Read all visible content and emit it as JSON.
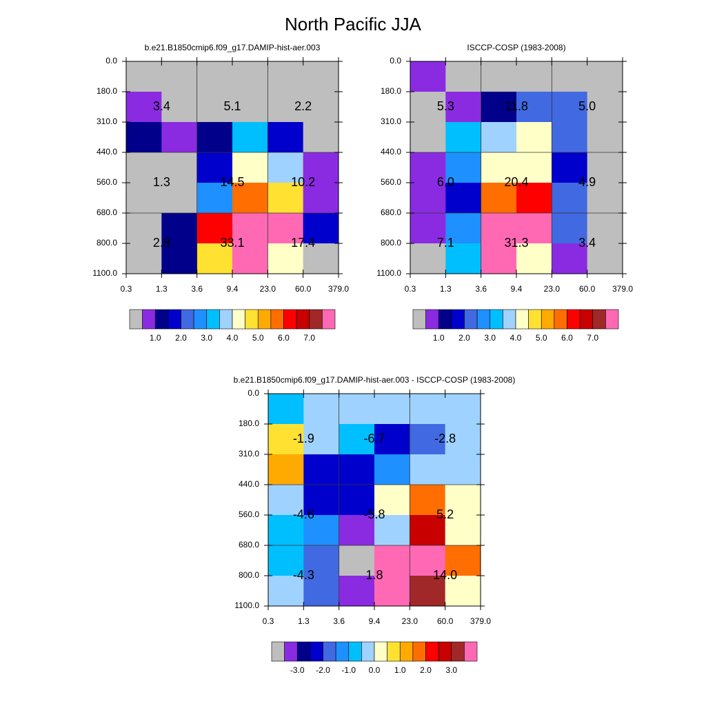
{
  "title": "North Pacific JJA",
  "chart_data": [
    {
      "type": "heatmap",
      "title": "b.e21.B1850cmip6.f09_g17.DAMIP-hist-aer.003",
      "x_edges": [
        0.3,
        1.3,
        3.6,
        9.4,
        {
          "value": 23,
          "label": "23.0"
        },
        {
          "value": 60,
          "label": "60.0"
        },
        {
          "value": 379,
          "label": "379.0"
        }
      ],
      "y_edges": [
        {
          "value": 0,
          "label": "0.0"
        },
        {
          "value": 180,
          "label": "180.0"
        },
        {
          "value": 310,
          "label": "310.0"
        },
        {
          "value": 440,
          "label": "440.0"
        },
        {
          "value": 560,
          "label": "560.0"
        },
        {
          "value": 680,
          "label": "680.0"
        },
        {
          "value": 800,
          "label": "800.0"
        },
        {
          "value": 1100,
          "label": "1100.0"
        }
      ],
      "values": [
        [
          0.2,
          0.2,
          0.2,
          0.2,
          0.1,
          0.1
        ],
        [
          0.7,
          0.2,
          0.2,
          0.2,
          0.1,
          0.1
        ],
        [
          1.4,
          0.7,
          1.2,
          3.1,
          1.6,
          0.2
        ],
        [
          0.3,
          0.4,
          1.8,
          4.2,
          3.8,
          0.8
        ],
        [
          0.3,
          0.3,
          2.8,
          5.7,
          4.8,
          0.8
        ],
        [
          0.3,
          1.2,
          6.3,
          8.5,
          10.8,
          1.9
        ],
        [
          0.2,
          1.1,
          4.8,
          13.5,
          4.4,
          0.3
        ]
      ],
      "colors": [
        "#bebebe",
        "#8a2be2",
        "#00008b",
        "#0000cd",
        "#4169e1",
        "#1e90ff",
        "#00bfff",
        "#a0d2ff",
        "#ffffc8",
        "#ffe132",
        "#ffaa00",
        "#ff6e00",
        "#ff0000",
        "#c80000",
        "#a02828",
        "#ff69b4"
      ],
      "levels": [
        0.5,
        {
          "value": 1,
          "label": "1.0"
        },
        1.5,
        {
          "value": 2,
          "label": "2.0"
        },
        2.5,
        {
          "value": 3,
          "label": "3.0"
        },
        3.5,
        {
          "value": 4,
          "label": "4.0"
        },
        4.5,
        {
          "value": 5,
          "label": "5.0"
        },
        5.5,
        {
          "value": 6,
          "label": "6.0"
        },
        6.5,
        {
          "value": 7,
          "label": "7.0"
        },
        7.5
      ],
      "block_values": [
        [
          3.4,
          5.1,
          2.2
        ],
        [
          1.3,
          14.5,
          10.2
        ],
        [
          2.8,
          33.1,
          17.4
        ]
      ]
    },
    {
      "type": "heatmap",
      "title": "ISCCP-COSP (1983-2008)",
      "x_edges": [
        0.3,
        1.3,
        3.6,
        9.4,
        {
          "value": 23,
          "label": "23.0"
        },
        {
          "value": 60,
          "label": "60.0"
        },
        {
          "value": 379,
          "label": "379.0"
        }
      ],
      "y_edges": [
        {
          "value": 0,
          "label": "0.0"
        },
        {
          "value": 180,
          "label": "180.0"
        },
        {
          "value": 310,
          "label": "310.0"
        },
        {
          "value": 440,
          "label": "440.0"
        },
        {
          "value": 560,
          "label": "560.0"
        },
        {
          "value": 680,
          "label": "680.0"
        },
        {
          "value": 800,
          "label": "800.0"
        },
        {
          "value": 1100,
          "label": "1100.0"
        }
      ],
      "values": [
        [
          0.8,
          0.2,
          0.2,
          0.2,
          0.2,
          0.1
        ],
        [
          0.3,
          0.7,
          1.2,
          2.3,
          2.2,
          0.2
        ],
        [
          0.2,
          3.1,
          3.8,
          4.1,
          2.1,
          0.2
        ],
        [
          0.8,
          2.7,
          4.3,
          4.2,
          1.8,
          0.3
        ],
        [
          0.7,
          1.8,
          5.6,
          6.3,
          2.4,
          0.4
        ],
        [
          0.9,
          2.7,
          9.5,
          8.5,
          2.3,
          0.3
        ],
        [
          0.3,
          3.2,
          9.0,
          4.3,
          0.6,
          0.2
        ]
      ],
      "colors": [
        "#bebebe",
        "#8a2be2",
        "#00008b",
        "#0000cd",
        "#4169e1",
        "#1e90ff",
        "#00bfff",
        "#a0d2ff",
        "#ffffc8",
        "#ffe132",
        "#ffaa00",
        "#ff6e00",
        "#ff0000",
        "#c80000",
        "#a02828",
        "#ff69b4"
      ],
      "levels": [
        0.5,
        {
          "value": 1,
          "label": "1.0"
        },
        1.5,
        {
          "value": 2,
          "label": "2.0"
        },
        2.5,
        {
          "value": 3,
          "label": "3.0"
        },
        3.5,
        {
          "value": 4,
          "label": "4.0"
        },
        4.5,
        {
          "value": 5,
          "label": "5.0"
        },
        5.5,
        {
          "value": 6,
          "label": "6.0"
        },
        6.5,
        {
          "value": 7,
          "label": "7.0"
        },
        7.5
      ],
      "block_values": [
        [
          5.3,
          11.8,
          5.0
        ],
        [
          6.0,
          20.4,
          4.9
        ],
        [
          7.1,
          31.3,
          3.4
        ]
      ],
      "block_value_labels": [
        [
          "5.3",
          "11.8",
          "5.0"
        ],
        [
          "6.0",
          "20.4",
          "4.9"
        ],
        [
          "7.1",
          "31.3",
          "3.4"
        ]
      ]
    },
    {
      "type": "heatmap",
      "title": "b.e21.B1850cmip6.f09_g17.DAMIP-hist-aer.003 - ISCCP-COSP (1983-2008)",
      "x_edges": [
        0.3,
        1.3,
        3.6,
        9.4,
        {
          "value": 23,
          "label": "23.0"
        },
        {
          "value": 60,
          "label": "60.0"
        },
        {
          "value": 379,
          "label": "379.0"
        }
      ],
      "y_edges": [
        {
          "value": 0,
          "label": "0.0"
        },
        {
          "value": 180,
          "label": "180.0"
        },
        {
          "value": 310,
          "label": "310.0"
        },
        {
          "value": 440,
          "label": "440.0"
        },
        {
          "value": 560,
          "label": "560.0"
        },
        {
          "value": 680,
          "label": "680.0"
        },
        {
          "value": 800,
          "label": "800.0"
        },
        {
          "value": 1100,
          "label": "1100.0"
        }
      ],
      "values": [
        [
          -0.8,
          -0.1,
          -0.1,
          -0.1,
          -0.1,
          -0.1
        ],
        [
          0.6,
          -0.4,
          -0.8,
          -2.2,
          -1.9,
          -0.2
        ],
        [
          1.2,
          -2.4,
          -2.2,
          -1.3,
          -0.4,
          -0.1
        ],
        [
          -0.2,
          -2.3,
          -2.4,
          0.2,
          1.8,
          0.4
        ],
        [
          -0.6,
          -1.5,
          -3.3,
          -0.3,
          2.7,
          0.3
        ],
        [
          -0.6,
          -1.8,
          -3.6,
          4.0,
          8.9,
          1.6
        ],
        [
          -0.1,
          -1.8,
          -3.2,
          4.6,
          3.4,
          0.1
        ]
      ],
      "colors": [
        "#bebebe",
        "#8a2be2",
        "#00008b",
        "#0000cd",
        "#4169e1",
        "#1e90ff",
        "#00bfff",
        "#a0d2ff",
        "#ffffc8",
        "#ffe132",
        "#ffaa00",
        "#ff6e00",
        "#ff0000",
        "#c80000",
        "#a02828",
        "#ff69b4"
      ],
      "levels": [
        -3.5,
        {
          "value": -3,
          "label": "-3.0"
        },
        -2.5,
        {
          "value": -2,
          "label": "-2.0"
        },
        -1.5,
        {
          "value": -1,
          "label": "-1.0"
        },
        -0.5,
        {
          "value": 0,
          "label": "0.0"
        },
        0.5,
        {
          "value": 1,
          "label": "1.0"
        },
        1.5,
        {
          "value": 2,
          "label": "2.0"
        },
        2.5,
        {
          "value": 3,
          "label": "3.0"
        },
        3.5
      ],
      "block_values": [
        [
          -1.9,
          -6.7,
          -2.8
        ],
        [
          -4.6,
          -5.8,
          5.2
        ],
        [
          -4.3,
          1.8,
          14.0
        ]
      ],
      "block_value_labels": [
        [
          "-1.9",
          "-6.7",
          "-2.8"
        ],
        [
          "-4.6",
          "-5.8",
          "5.2"
        ],
        [
          "-4.3",
          "1.8",
          "14.0"
        ]
      ]
    }
  ]
}
